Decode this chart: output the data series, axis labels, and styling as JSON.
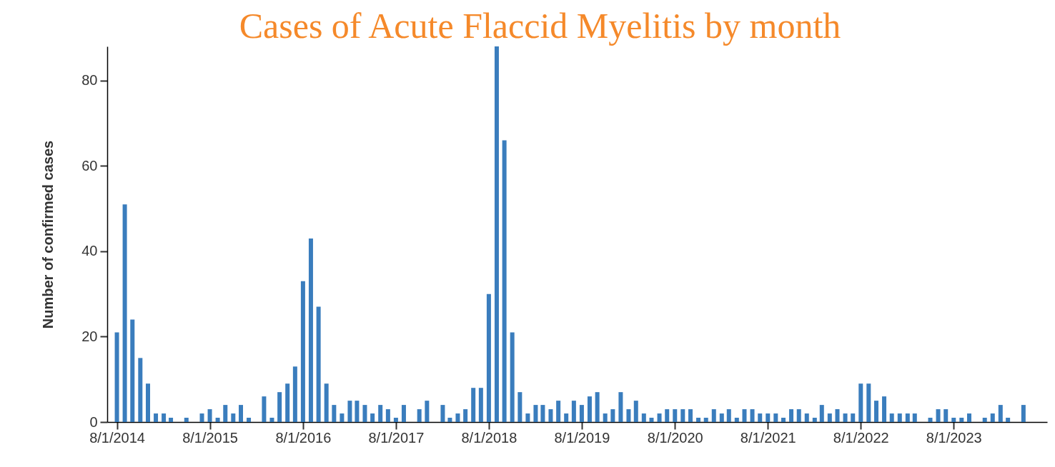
{
  "chart_data": {
    "type": "bar",
    "title": "Cases of Acute Flaccid Myelitis by month",
    "ylabel": "Number of confirmed cases",
    "x": [
      "2014-08",
      "2014-09",
      "2014-10",
      "2014-11",
      "2014-12",
      "2015-01",
      "2015-02",
      "2015-03",
      "2015-04",
      "2015-05",
      "2015-06",
      "2015-07",
      "2015-08",
      "2015-09",
      "2015-10",
      "2015-11",
      "2015-12",
      "2016-01",
      "2016-02",
      "2016-03",
      "2016-04",
      "2016-05",
      "2016-06",
      "2016-07",
      "2016-08",
      "2016-09",
      "2016-10",
      "2016-11",
      "2016-12",
      "2017-01",
      "2017-02",
      "2017-03",
      "2017-04",
      "2017-05",
      "2017-06",
      "2017-07",
      "2017-08",
      "2017-09",
      "2017-10",
      "2017-11",
      "2017-12",
      "2018-01",
      "2018-02",
      "2018-03",
      "2018-04",
      "2018-05",
      "2018-06",
      "2018-07",
      "2018-08",
      "2018-09",
      "2018-10",
      "2018-11",
      "2018-12",
      "2019-01",
      "2019-02",
      "2019-03",
      "2019-04",
      "2019-05",
      "2019-06",
      "2019-07",
      "2019-08",
      "2019-09",
      "2019-10",
      "2019-11",
      "2019-12",
      "2020-01",
      "2020-02",
      "2020-03",
      "2020-04",
      "2020-05",
      "2020-06",
      "2020-07",
      "2020-08",
      "2020-09",
      "2020-10",
      "2020-11",
      "2020-12",
      "2021-01",
      "2021-02",
      "2021-03",
      "2021-04",
      "2021-05",
      "2021-06",
      "2021-07",
      "2021-08",
      "2021-09",
      "2021-10",
      "2021-11",
      "2021-12",
      "2022-01",
      "2022-02",
      "2022-03",
      "2022-04",
      "2022-05",
      "2022-06",
      "2022-07",
      "2022-08",
      "2022-09",
      "2022-10",
      "2022-11",
      "2022-12",
      "2023-01",
      "2023-02",
      "2023-03",
      "2023-04",
      "2023-05",
      "2023-06",
      "2023-07",
      "2023-08",
      "2023-09",
      "2023-10",
      "2023-11",
      "2023-12",
      "2024-01",
      "2024-02",
      "2024-03",
      "2024-04",
      "2024-05"
    ],
    "values": [
      21,
      51,
      24,
      15,
      9,
      2,
      2,
      1,
      0,
      1,
      0,
      2,
      3,
      1,
      4,
      2,
      4,
      1,
      0,
      6,
      1,
      7,
      9,
      13,
      33,
      43,
      27,
      9,
      4,
      2,
      5,
      5,
      4,
      2,
      4,
      3,
      1,
      4,
      0,
      3,
      5,
      0,
      4,
      1,
      2,
      3,
      8,
      8,
      30,
      88,
      66,
      21,
      7,
      2,
      4,
      4,
      3,
      5,
      2,
      5,
      4,
      6,
      7,
      2,
      3,
      7,
      3,
      5,
      2,
      1,
      2,
      3,
      3,
      3,
      3,
      1,
      1,
      3,
      2,
      3,
      1,
      3,
      3,
      2,
      2,
      2,
      1,
      3,
      3,
      2,
      1,
      4,
      2,
      3,
      2,
      2,
      9,
      9,
      5,
      6,
      2,
      2,
      2,
      2,
      0,
      1,
      3,
      3,
      1,
      1,
      2,
      0,
      1,
      2,
      4,
      1,
      0,
      4
    ],
    "color": "#3a7dbd",
    "xlim": [
      "2014-07-08",
      "2024-07-19"
    ],
    "xticks": [
      {
        "value": "2014-08-01",
        "label": "8/1/2014"
      },
      {
        "value": "2015-08-01",
        "label": "8/1/2015"
      },
      {
        "value": "2016-08-01",
        "label": "8/1/2016"
      },
      {
        "value": "2017-08-01",
        "label": "8/1/2017"
      },
      {
        "value": "2018-08-01",
        "label": "8/1/2018"
      },
      {
        "value": "2019-08-01",
        "label": "8/1/2019"
      },
      {
        "value": "2020-08-01",
        "label": "8/1/2020"
      },
      {
        "value": "2021-08-01",
        "label": "8/1/2021"
      },
      {
        "value": "2022-08-01",
        "label": "8/1/2022"
      },
      {
        "value": "2023-08-01",
        "label": "8/1/2023"
      }
    ],
    "ylim": [
      0,
      88
    ],
    "yticks": [
      0,
      20,
      40,
      60,
      80
    ],
    "grid": false
  }
}
